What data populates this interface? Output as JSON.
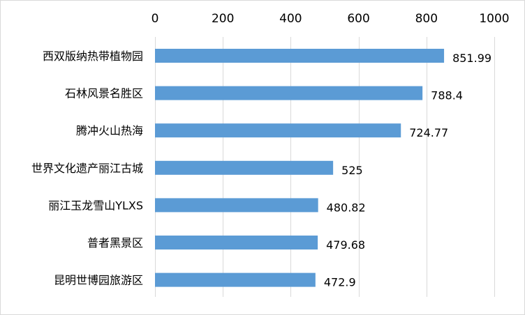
{
  "chart_data": {
    "type": "bar",
    "orientation": "horizontal",
    "title": "",
    "xlabel": "",
    "ylabel": "",
    "categories": [
      "西双版纳热带植物园",
      "石林风景名胜区",
      "腾冲火山热海",
      "世界文化遗产丽江古城",
      "丽江玉龙雪山YLXS",
      "普者黑景区",
      "昆明世博园旅游区"
    ],
    "values": [
      851.99,
      788.4,
      724.77,
      525,
      480.82,
      479.68,
      472.9
    ],
    "value_labels": [
      "851.99",
      "788.4",
      "724.77",
      "525",
      "480.82",
      "479.68",
      "472.9"
    ],
    "xlim": [
      0,
      1000
    ],
    "x_ticks": [
      0,
      200,
      400,
      600,
      800,
      1000
    ],
    "x_tick_labels": [
      "0",
      "200",
      "400",
      "600",
      "800",
      "1000"
    ],
    "x_axis_position": "top",
    "grid": true,
    "legend": "none",
    "bar_color": "#5b9bd5"
  }
}
